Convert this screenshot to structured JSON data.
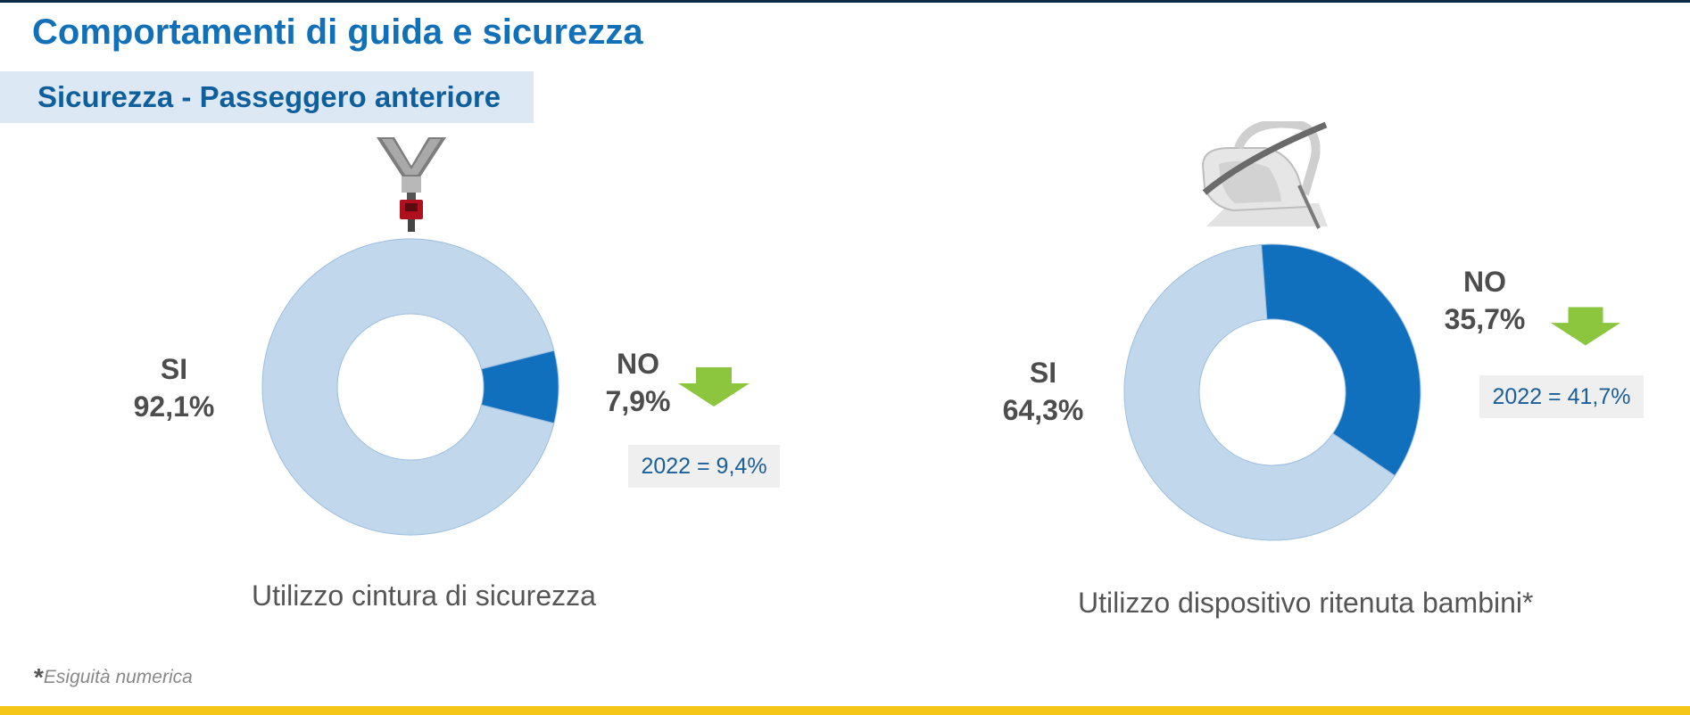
{
  "page": {
    "title": "Comportamenti di guida e sicurezza",
    "subtitle": "Sicurezza - Passeggero anteriore",
    "footnote_mark": "*",
    "footnote_text": "Esiguità numerica"
  },
  "icons": {
    "left": "seatbelt-icon",
    "right": "child-car-seat-icon",
    "trend": "arrow-down-icon"
  },
  "colors": {
    "title": "#1270b8",
    "si_slice": "#c0d7ec",
    "no_slice": "#1170be",
    "arrow": "#8cc63f",
    "bottom_bar": "#f5c518"
  },
  "charts": [
    {
      "caption": "Utilizzo cintura di sicurezza",
      "si_label": "SI",
      "si_value_text": "92,1%",
      "no_label": "NO",
      "no_value_text": "7,9%",
      "comparison": "2022 = 9,4%"
    },
    {
      "caption": "Utilizzo dispositivo ritenuta bambini*",
      "si_label": "SI",
      "si_value_text": "64,3%",
      "no_label": "NO",
      "no_value_text": "35,7%",
      "comparison": "2022 = 41,7%"
    }
  ],
  "chart_data": [
    {
      "type": "pie",
      "title": "Utilizzo cintura di sicurezza",
      "labels": [
        "SI",
        "NO"
      ],
      "values": [
        92.1,
        7.9
      ],
      "colors": [
        "#c0d7ec",
        "#1170be"
      ],
      "comparison_2022_no": 9.4
    },
    {
      "type": "pie",
      "title": "Utilizzo dispositivo ritenuta bambini*",
      "labels": [
        "SI",
        "NO"
      ],
      "values": [
        64.3,
        35.7
      ],
      "colors": [
        "#c0d7ec",
        "#1170be"
      ],
      "comparison_2022_no": 41.7
    }
  ]
}
